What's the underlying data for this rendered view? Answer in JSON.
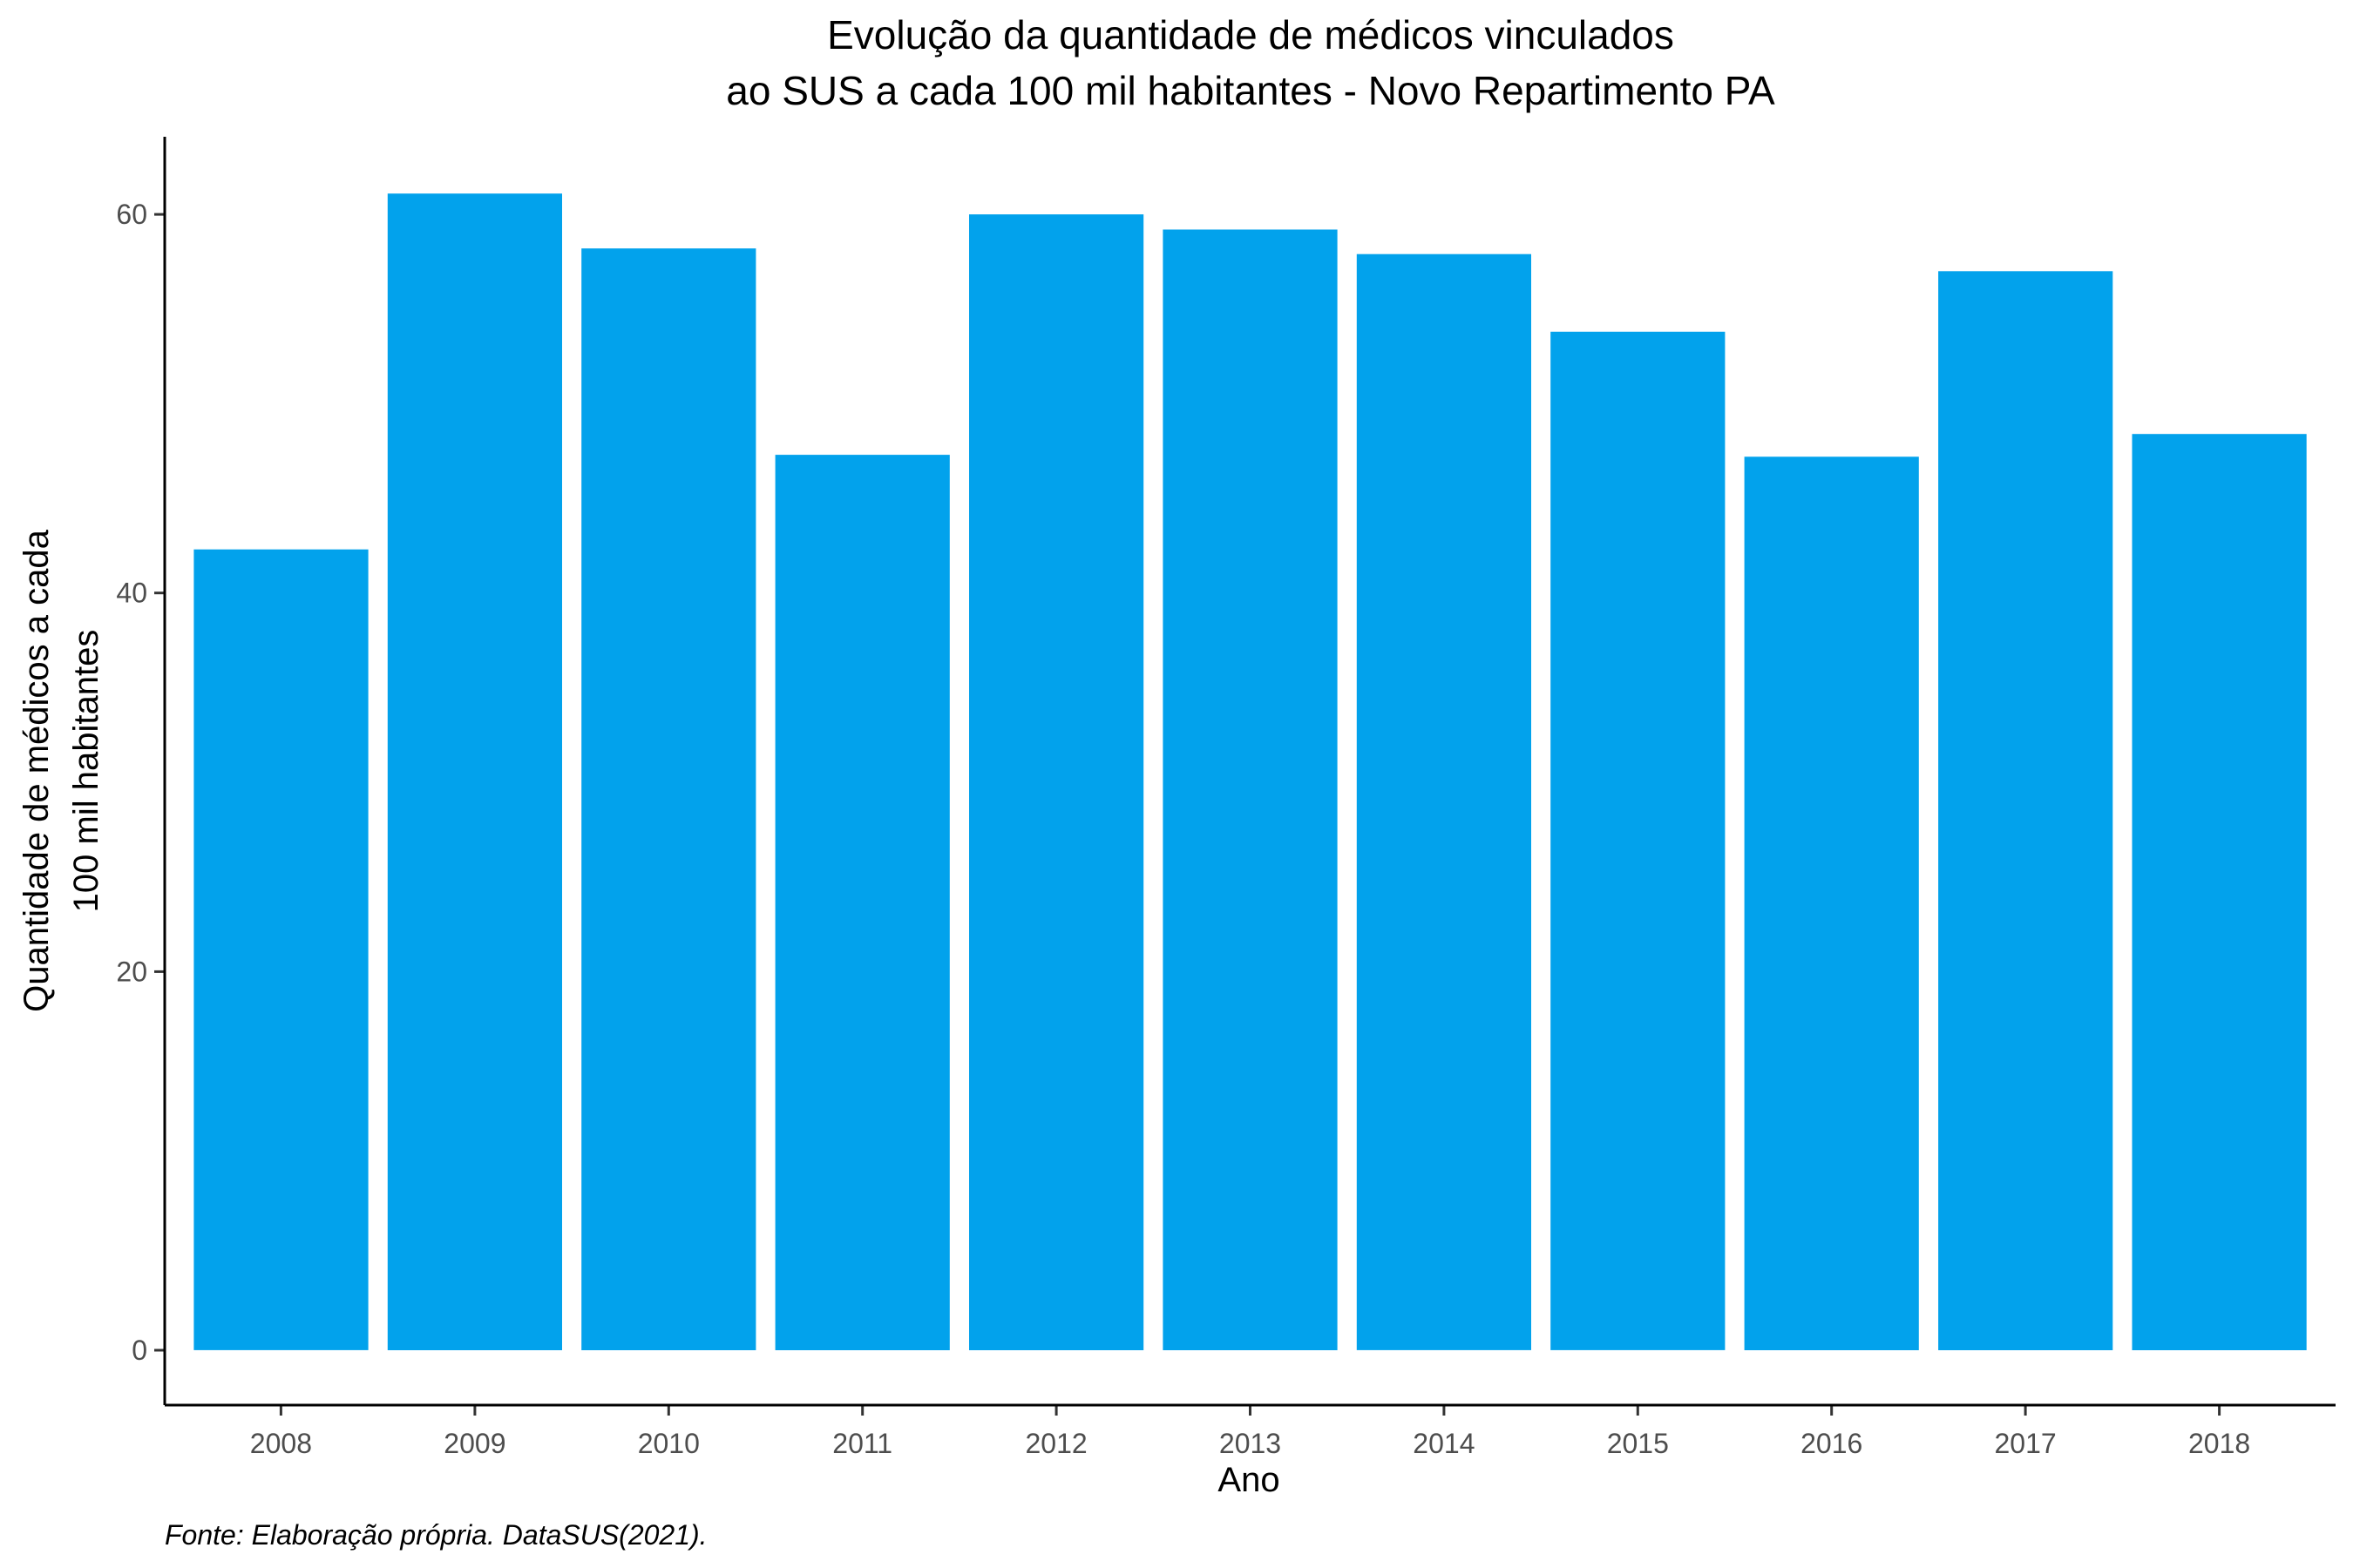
{
  "chart_data": {
    "type": "bar",
    "title_lines": [
      "Evolução da quantidade de médicos vinculados",
      "ao SUS a cada 100 mil habitantes - Novo Repartimento PA"
    ],
    "xlabel": "Ano",
    "ylabel_lines": [
      "Quantidade de médicos a cada",
      "100 mil habitantes"
    ],
    "caption": "Fonte: Elaboração própria. DataSUS(2021).",
    "categories": [
      "2008",
      "2009",
      "2010",
      "2011",
      "2012",
      "2013",
      "2014",
      "2015",
      "2016",
      "2017",
      "2018"
    ],
    "values": [
      42.3,
      61.1,
      58.2,
      47.3,
      60.0,
      59.2,
      57.9,
      53.8,
      47.2,
      57.0,
      48.4
    ],
    "yticks": [
      0,
      20,
      40,
      60
    ],
    "ylim": [
      -2.9,
      64.1
    ],
    "bar_color": "#02A2EC",
    "grid": false,
    "legend": "none"
  }
}
